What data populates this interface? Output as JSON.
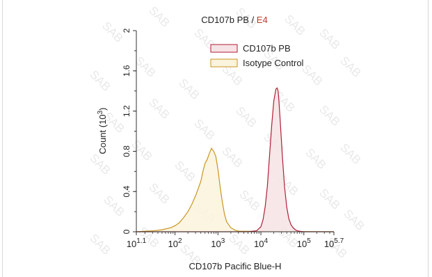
{
  "chart_data": {
    "type": "area",
    "title_main": "CD107b PB",
    "title_separator": " / ",
    "title_gate": "E4",
    "xlabel": "CD107b Pacific Blue-H",
    "ylabel": "Count",
    "ylabel_unit": "(10",
    "ylabel_unit_exp": "3",
    "ylabel_unit_close": ")",
    "x_scale": "log",
    "xlim": [
      1.1,
      5.7
    ],
    "ylim": [
      0,
      2
    ],
    "x_ticks": [
      {
        "pos": 1.1,
        "base": "10",
        "exp": "1.1"
      },
      {
        "pos": 2,
        "base": "10",
        "exp": "2"
      },
      {
        "pos": 3,
        "base": "10",
        "exp": "3"
      },
      {
        "pos": 4,
        "base": "10",
        "exp": "4"
      },
      {
        "pos": 5,
        "base": "10",
        "exp": "5"
      },
      {
        "pos": 5.7,
        "base": "10",
        "exp": "5.7"
      }
    ],
    "y_ticks": [
      {
        "pos": 0,
        "label": "0"
      },
      {
        "pos": 0.4,
        "label": "0.4"
      },
      {
        "pos": 0.8,
        "label": "0.8"
      },
      {
        "pos": 1.2,
        "label": "1.2"
      },
      {
        "pos": 1.6,
        "label": "1.6"
      },
      {
        "pos": 2,
        "label": "2"
      }
    ],
    "legend_position": "top-right",
    "watermark": "SAB",
    "colors": {
      "title_gate": "#c0392b",
      "axis": "#333333"
    },
    "series": [
      {
        "name": "CD107b PB",
        "stroke": "#b01e35",
        "fill": "#f6e3e5",
        "x": [
          1.1,
          3.7,
          3.9,
          4.0,
          4.05,
          4.1,
          4.15,
          4.2,
          4.25,
          4.3,
          4.35,
          4.38,
          4.4,
          4.42,
          4.45,
          4.5,
          4.55,
          4.6,
          4.65,
          4.7,
          4.75,
          4.8,
          4.85,
          4.9,
          5.0,
          5.7
        ],
        "y": [
          0,
          0,
          0.01,
          0.05,
          0.12,
          0.25,
          0.45,
          0.75,
          1.05,
          1.3,
          1.42,
          1.43,
          1.4,
          1.3,
          1.1,
          0.75,
          0.45,
          0.25,
          0.13,
          0.07,
          0.04,
          0.02,
          0.01,
          0.005,
          0,
          0
        ]
      },
      {
        "name": "Isotype Control",
        "stroke": "#c9951f",
        "fill": "#faf3dd",
        "x": [
          1.1,
          1.3,
          1.5,
          1.7,
          1.9,
          2.0,
          2.1,
          2.2,
          2.3,
          2.4,
          2.5,
          2.6,
          2.65,
          2.7,
          2.75,
          2.8,
          2.85,
          2.9,
          2.95,
          3.0,
          3.05,
          3.1,
          3.15,
          3.2,
          3.3,
          3.4,
          3.5,
          5.7
        ],
        "y": [
          0,
          0.005,
          0.01,
          0.02,
          0.04,
          0.06,
          0.09,
          0.14,
          0.2,
          0.28,
          0.38,
          0.5,
          0.6,
          0.68,
          0.72,
          0.78,
          0.83,
          0.8,
          0.75,
          0.62,
          0.45,
          0.3,
          0.18,
          0.1,
          0.04,
          0.015,
          0.005,
          0
        ]
      }
    ]
  }
}
